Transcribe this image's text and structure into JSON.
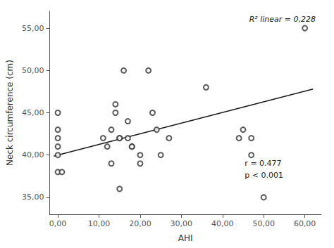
{
  "chart_data": {
    "type": "scatter",
    "xlabel": "AHI",
    "ylabel": "Neck circumference (cm)",
    "series": [
      {
        "type": "scatter",
        "marker": "open circle",
        "color": "#333333",
        "x": [
          0,
          0,
          0,
          0,
          0,
          0,
          1,
          11,
          12,
          13,
          13,
          14,
          14,
          15,
          15,
          15,
          16,
          17,
          17,
          18,
          18,
          20,
          20,
          22,
          23,
          24,
          25,
          27,
          36,
          44,
          45,
          47,
          47,
          50,
          60
        ],
        "values": [
          45,
          43,
          42,
          41,
          40,
          38,
          38,
          42,
          41,
          43,
          39,
          46,
          45,
          42,
          42,
          36,
          50,
          44,
          42,
          41,
          41,
          39,
          40,
          50,
          45,
          43,
          40,
          42,
          48,
          42,
          43,
          42,
          40,
          35,
          55
        ]
      },
      {
        "type": "line",
        "color": "#1a1a1a",
        "x": [
          -1,
          62
        ],
        "values": [
          39.87,
          47.8
        ]
      }
    ],
    "xlim": [
      -2,
      64
    ],
    "ylim": [
      33,
      57
    ],
    "xticks": [
      {
        "value": 0,
        "label": "0,00"
      },
      {
        "value": 10,
        "label": "10,00"
      },
      {
        "value": 20,
        "label": "20,00"
      },
      {
        "value": 30,
        "label": "30,00"
      },
      {
        "value": 40,
        "label": "40,00"
      },
      {
        "value": 50,
        "label": "50,00"
      },
      {
        "value": 60,
        "label": "60,00"
      }
    ],
    "yticks": [
      {
        "value": 35,
        "label": "35,00"
      },
      {
        "value": 40,
        "label": "40,00"
      },
      {
        "value": 45,
        "label": "45,00"
      },
      {
        "value": 50,
        "label": "50,00"
      },
      {
        "value": 55,
        "label": "55,00"
      }
    ],
    "grid": false,
    "annotations": [
      "R² linear = 0,228",
      "r = 0.477",
      "p < 0.001"
    ]
  }
}
